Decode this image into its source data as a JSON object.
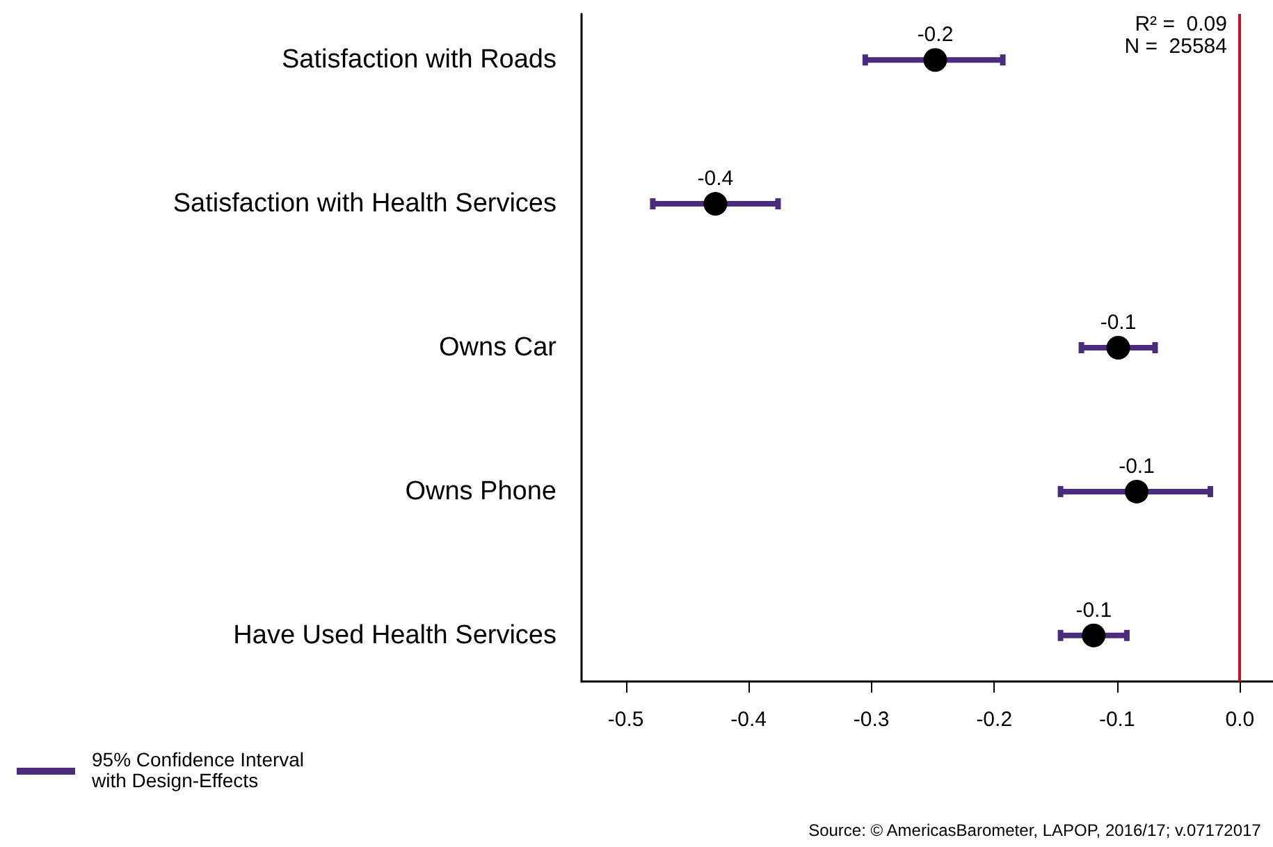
{
  "chart_data": {
    "type": "scatter",
    "orientation": "horizontal",
    "categories": [
      "Satisfaction with Roads",
      "Satisfaction with Health Services",
      "Owns Car",
      "Owns Phone",
      "Have Used Health Services"
    ],
    "series": [
      {
        "name": "95% Confidence Interval with Design-Effects",
        "color": "#000000",
        "values": [
          -0.248,
          -0.427,
          -0.099,
          -0.084,
          -0.119
        ],
        "errors": [
          [
            -0.305,
            -0.193
          ],
          [
            -0.478,
            -0.376
          ],
          [
            -0.129,
            -0.069
          ],
          [
            -0.146,
            -0.024
          ],
          [
            -0.146,
            -0.092
          ]
        ],
        "value_labels": [
          "-0.2",
          "-0.4",
          "-0.1",
          "-0.1",
          "-0.1"
        ]
      }
    ],
    "xlim": [
      -0.536,
      0.027
    ],
    "xticks": [
      -0.5,
      -0.4,
      -0.3,
      -0.2,
      -0.1,
      {
        "value": 0,
        "label": "0.0"
      }
    ],
    "ref_lines": [
      {
        "axis": "x",
        "value": 0,
        "color": "#c8102e"
      }
    ],
    "marker": "circle",
    "legend": "bottom left",
    "annotations": [
      "R² =  0.09",
      "N =  25584",
      "Source: © AmericasBarometer, LAPOP, 2016/17; v.07172017"
    ]
  }
}
